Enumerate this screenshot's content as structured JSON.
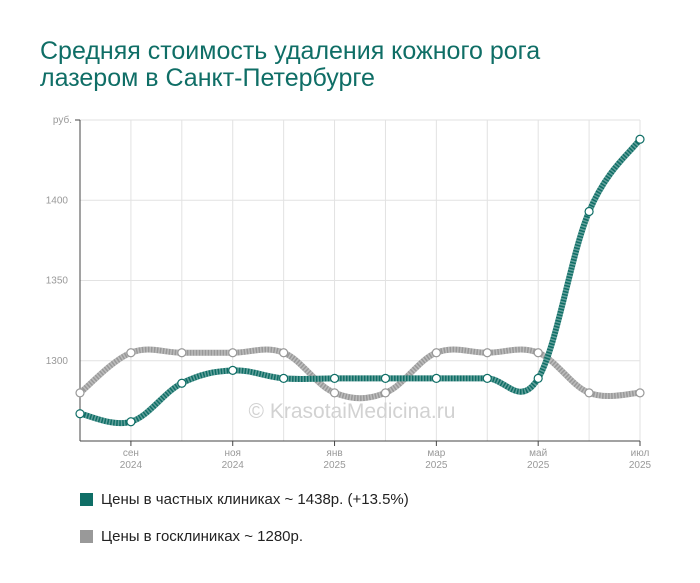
{
  "chart_data": {
    "type": "line",
    "title": "Средняя стоимость удаления кожного рога лазером в Санкт-Петербурге",
    "ylabel": "руб.",
    "ylim": [
      1250,
      1450
    ],
    "yticks": [
      1300,
      1350,
      1400
    ],
    "grid": true,
    "legend_position": "bottom-left",
    "watermark": "© KrasotaiMedicina.ru",
    "x": [
      "2024-08",
      "2024-09",
      "2024-10",
      "2024-11",
      "2024-12",
      "2025-01",
      "2025-02",
      "2025-03",
      "2025-04",
      "2025-05",
      "2025-06",
      "2025-07"
    ],
    "x_tick_labels": [
      {
        "index": 1,
        "month": "сен",
        "year": "2024"
      },
      {
        "index": 3,
        "month": "ноя",
        "year": "2024"
      },
      {
        "index": 5,
        "month": "янв",
        "year": "2025"
      },
      {
        "index": 7,
        "month": "мар",
        "year": "2025"
      },
      {
        "index": 9,
        "month": "май",
        "year": "2025"
      },
      {
        "index": 11,
        "month": "июл",
        "year": "2025"
      }
    ],
    "series": [
      {
        "name": "Цены в частных клиниках ~ 1438р. (+13.5%)",
        "color": "#0f6e66",
        "values": [
          1267,
          1262,
          1286,
          1294,
          1289,
          1289,
          1289,
          1289,
          1289,
          1289,
          1393,
          1438
        ]
      },
      {
        "name": "Цены в госклиниках ~ 1280р.",
        "color": "#999999",
        "values": [
          1280,
          1305,
          1305,
          1305,
          1305,
          1280,
          1280,
          1305,
          1305,
          1305,
          1280,
          1280
        ]
      }
    ]
  }
}
